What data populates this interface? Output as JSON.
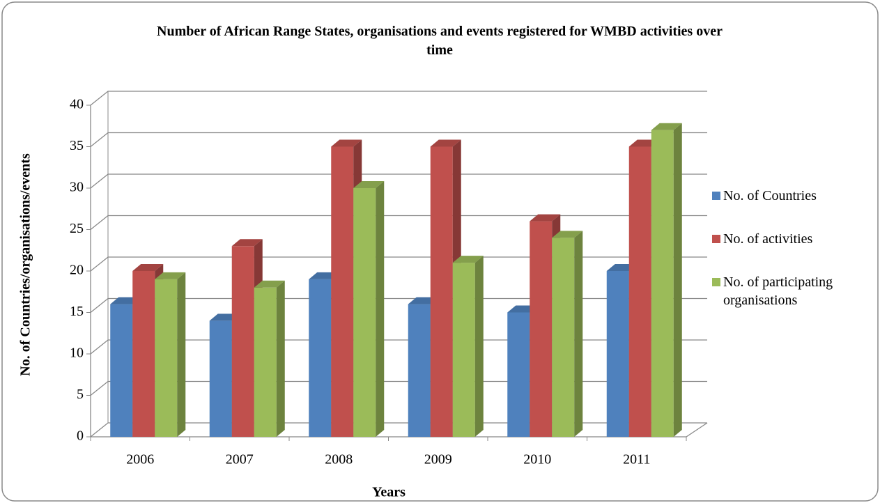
{
  "chart_data": {
    "type": "bar3d",
    "title": "Number of African Range States, organisations and events registered for WMBD activities over time",
    "x_label": "Years",
    "y_label": "No. of Countries/organisations/events",
    "categories": [
      "2006",
      "2007",
      "2008",
      "2009",
      "2010",
      "2011"
    ],
    "series": [
      {
        "name": "No. of Countries",
        "color": "#4f81bd",
        "values": [
          16,
          14,
          19,
          16,
          15,
          20
        ]
      },
      {
        "name": "No. of activities",
        "color": "#c0504d",
        "values": [
          20,
          23,
          35,
          35,
          26,
          35
        ]
      },
      {
        "name": "No. of participating organisations",
        "color": "#9bbb59",
        "values": [
          19,
          18,
          30,
          21,
          24,
          37
        ]
      }
    ],
    "ylim": [
      0,
      40
    ],
    "yticks": [
      0,
      5,
      10,
      15,
      20,
      25,
      30,
      35,
      40
    ],
    "grid": true,
    "legend": "right"
  }
}
